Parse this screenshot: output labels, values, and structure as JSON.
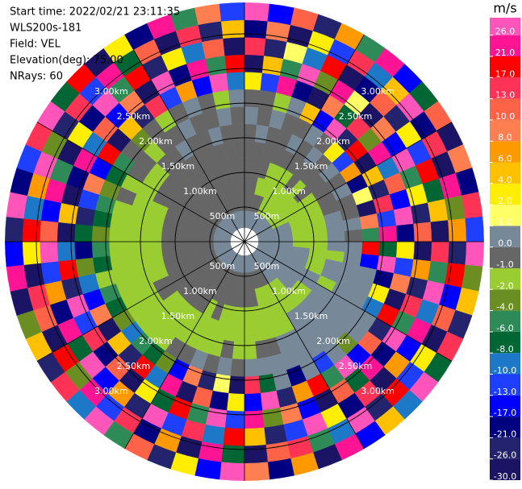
{
  "chart_data": {
    "type": "ppi",
    "info": [
      "Start time: 2022/02/21 23:11:35",
      "WLS200s-181",
      "Field: VEL",
      "Elevation(deg): 75.00",
      "NRays: 60"
    ],
    "colorbar_title": "m/s",
    "ranges": [
      0.2,
      0.45,
      0.7,
      0.95,
      1.2,
      1.45,
      1.7,
      1.95,
      2.2,
      2.45,
      2.7,
      2.95,
      3.2,
      3.45
    ],
    "range_rings": [
      {
        "value": 0.5,
        "label": "500m"
      },
      {
        "value": 1.0,
        "label": "1.00km"
      },
      {
        "value": 1.5,
        "label": "1.50km"
      },
      {
        "value": 2.0,
        "label": "2.00km"
      },
      {
        "value": 2.5,
        "label": "2.50km"
      },
      {
        "value": 3.0,
        "label": "3.00km"
      }
    ],
    "levels": [
      {
        "value": -30,
        "label": "-30.0"
      },
      {
        "value": -26,
        "label": "-26.0"
      },
      {
        "value": -21,
        "label": "-21.0"
      },
      {
        "value": -17,
        "label": "-17.0"
      },
      {
        "value": -13,
        "label": "-13.0"
      },
      {
        "value": -10,
        "label": "-10.0"
      },
      {
        "value": -8,
        "label": "-8.0"
      },
      {
        "value": -6,
        "label": "-6.0"
      },
      {
        "value": -4,
        "label": "-4.0"
      },
      {
        "value": -2,
        "label": "-2.0"
      },
      {
        "value": -1,
        "label": "-1.0"
      },
      {
        "value": 0,
        "label": "0.0"
      },
      {
        "value": 1,
        "label": "1.0"
      },
      {
        "value": 2,
        "label": "2.0"
      },
      {
        "value": 4,
        "label": "4.0"
      },
      {
        "value": 6,
        "label": "6.0"
      },
      {
        "value": 8,
        "label": "8.0"
      },
      {
        "value": 10,
        "label": "10.0"
      },
      {
        "value": 13,
        "label": "13.0"
      },
      {
        "value": 17,
        "label": "17.0"
      },
      {
        "value": 21,
        "label": "21.0"
      },
      {
        "value": 26,
        "label": "26.0"
      }
    ],
    "colors": [
      "#1b1464",
      "#24246e",
      "#000080",
      "#0000ff",
      "#1f3fff",
      "#1e78c8",
      "#006633",
      "#2e8b57",
      "#6b8e23",
      "#9acd32",
      "#666666",
      "#778899",
      "#ffff66",
      "#ffee00",
      "#ffc000",
      "#ff9900",
      "#ff7f50",
      "#ff6347",
      "#ff3355",
      "#ff0000",
      "#ff1493",
      "#ff55bb"
    ],
    "values": [
      [
        0.5,
        -0.5,
        -0.5,
        -0.5,
        -0.5,
        -0.5,
        0.5,
        -0.5,
        3,
        -28,
        15,
        -19,
        28
      ],
      [
        0.5,
        -0.5,
        -0.5,
        -0.5,
        -0.5,
        0.5,
        -0.5,
        -0.5,
        -11,
        5,
        -23,
        9,
        -15
      ],
      [
        0.5,
        -0.5,
        -1.5,
        -0.5,
        -0.5,
        -0.5,
        0.5,
        -1.5,
        23,
        -5,
        1.5,
        -28,
        11
      ],
      [
        0.5,
        -0.5,
        -1.5,
        -1.5,
        -0.5,
        -0.5,
        -0.5,
        0.5,
        -19,
        28,
        -9,
        3,
        -23
      ],
      [
        0.5,
        -1.5,
        -1.5,
        -1.5,
        -0.5,
        0.5,
        -0.5,
        5,
        -28,
        -3,
        19,
        -11,
        7
      ],
      [
        0.5,
        -1.5,
        -1.5,
        -1.5,
        -0.5,
        -0.5,
        0.5,
        -15,
        9,
        23,
        -28,
        15,
        -5
      ],
      [
        0.5,
        -1.5,
        -1.5,
        -0.5,
        -0.5,
        0.5,
        -0.5,
        28,
        -7,
        1.5,
        -19,
        -9,
        23
      ],
      [
        0.5,
        -1.5,
        -1.5,
        -1.5,
        -0.5,
        -0.5,
        3,
        -23,
        15,
        -28,
        11,
        5,
        -15
      ],
      [
        0.5,
        -1.5,
        -1.5,
        -0.5,
        -0.5,
        0.5,
        -11,
        19,
        -3,
        9,
        -23,
        28,
        -7
      ],
      [
        0.5,
        -1.5,
        -1.5,
        -1.5,
        -0.5,
        -0.5,
        7,
        -28,
        23,
        -15,
        3,
        -19,
        11
      ],
      [
        0.5,
        -1.5,
        -1.5,
        -1.5,
        -0.5,
        0.5,
        -19,
        5,
        -9,
        28,
        -11,
        15,
        -28
      ],
      [
        0.5,
        0.5,
        -1.5,
        -1.5,
        -0.5,
        -0.5,
        1.5,
        -23,
        11,
        -5,
        19,
        -28,
        9
      ],
      [
        0.5,
        0.5,
        -1.5,
        -1.5,
        0.5,
        -0.5,
        -28,
        15,
        -15,
        3,
        -7,
        23,
        -19
      ],
      [
        0.5,
        0.5,
        -1.5,
        -1.5,
        0.5,
        0.5,
        9,
        -11,
        28,
        -23,
        5,
        -3,
        15
      ],
      [
        0.5,
        0.5,
        -1.5,
        -1.5,
        0.5,
        -0.5,
        -5,
        23,
        -19,
        11,
        -28,
        7,
        -11
      ],
      [
        0.5,
        0.5,
        -1.5,
        -1.5,
        0.5,
        0.5,
        19,
        -7,
        3,
        -28,
        15,
        -23,
        28
      ],
      [
        0.5,
        0.5,
        0.5,
        -1.5,
        -1.5,
        0.5,
        -15,
        28,
        -11,
        7,
        -5,
        19,
        -3
      ],
      [
        0.5,
        0.5,
        0.5,
        -1.5,
        0.5,
        0.5,
        0.5,
        -19,
        9,
        -23,
        28,
        -15,
        5
      ],
      [
        0.5,
        0.5,
        0.5,
        -1.5,
        0.5,
        0.5,
        0.5,
        3,
        -28,
        15,
        -9,
        11,
        -23
      ],
      [
        0.5,
        0.5,
        0.5,
        0.5,
        -1.5,
        0.5,
        0.5,
        -9,
        19,
        -5,
        23,
        -28,
        15
      ],
      [
        0.5,
        0.5,
        0.5,
        0.5,
        0.5,
        0.5,
        0.5,
        0.5,
        -23,
        28,
        -15,
        3,
        -7
      ],
      [
        0.5,
        0.5,
        0.5,
        -1.5,
        0.5,
        0.5,
        0.5,
        0.5,
        11,
        -19,
        7,
        -11,
        28
      ],
      [
        0.5,
        0.5,
        0.5,
        -1.5,
        0.5,
        0.5,
        0.5,
        -3,
        -15,
        23,
        -28,
        19,
        -9
      ],
      [
        0.5,
        0.5,
        -1.5,
        -1.5,
        0.5,
        0.5,
        0.5,
        0.5,
        28,
        -7,
        15,
        -23,
        5
      ],
      [
        0.5,
        0.5,
        -1.5,
        -1.5,
        0.5,
        0.5,
        0.5,
        -11,
        -5,
        11,
        -19,
        28,
        -15
      ],
      [
        0.5,
        -0.5,
        -1.5,
        -1.5,
        -1.5,
        0.5,
        0.5,
        0.5,
        19,
        -28,
        3,
        -9,
        23
      ],
      [
        0.5,
        -0.5,
        -1.5,
        -1.5,
        -1.5,
        0.5,
        0.5,
        -19,
        7,
        -15,
        28,
        -5,
        -28
      ],
      [
        0.5,
        -0.5,
        -1.5,
        -1.5,
        -1.5,
        -0.5,
        0.5,
        0.5,
        -23,
        9,
        -11,
        15,
        7
      ],
      [
        0.5,
        -0.5,
        -0.5,
        -1.5,
        -1.5,
        -0.5,
        0.5,
        -7,
        28,
        -3,
        -23,
        11,
        -19
      ],
      [
        0.5,
        -0.5,
        -0.5,
        -1.5,
        -1.5,
        -1.5,
        0.5,
        15,
        -15,
        23,
        5,
        -28,
        9
      ],
      [
        0.5,
        -0.5,
        -0.5,
        -1.5,
        -1.5,
        -1.5,
        -0.5,
        -28,
        3,
        -11,
        19,
        -7,
        28
      ],
      [
        0.5,
        -0.5,
        -0.5,
        -1.5,
        -1.5,
        -0.5,
        0.5,
        1.5,
        -19,
        28,
        -9,
        23,
        -15
      ],
      [
        0.5,
        -0.5,
        -0.5,
        -1.5,
        -1.5,
        -1.5,
        -0.5,
        -23,
        11,
        -5,
        15,
        -28,
        3
      ],
      [
        0.5,
        -0.5,
        -0.5,
        -0.5,
        -1.5,
        -1.5,
        0.5,
        9,
        -28,
        19,
        -11,
        7,
        -23
      ],
      [
        0.5,
        -0.5,
        -0.5,
        -1.5,
        -1.5,
        -1.5,
        -0.5,
        -15,
        23,
        -7,
        28,
        -19,
        11
      ],
      [
        0.5,
        -0.5,
        -0.5,
        -0.5,
        -1.5,
        -1.5,
        -0.5,
        -3,
        -9,
        3,
        -23,
        15,
        -5
      ],
      [
        0.5,
        -0.5,
        -0.5,
        -0.5,
        -1.5,
        -1.5,
        -1.5,
        -7,
        19,
        -28,
        7,
        -11,
        28
      ],
      [
        0.5,
        -0.5,
        -0.5,
        -0.5,
        -1.5,
        -1.5,
        -1.5,
        -5,
        -23,
        11,
        -15,
        23,
        -9
      ],
      [
        0.5,
        -0.5,
        -0.5,
        -0.5,
        -1.5,
        -1.5,
        -1.5,
        -9,
        5,
        -19,
        28,
        -3,
        15
      ],
      [
        0.5,
        -0.5,
        -0.5,
        -0.5,
        -0.5,
        -1.5,
        -1.5,
        -3,
        -28,
        15,
        -7,
        19,
        -23
      ],
      [
        0.5,
        -0.5,
        -0.5,
        -0.5,
        -0.5,
        -1.5,
        -1.5,
        -7,
        9,
        -11,
        23,
        -28,
        5
      ],
      [
        0.5,
        -0.5,
        -0.5,
        -0.5,
        -1.5,
        -1.5,
        -1.5,
        -5,
        -15,
        28,
        -19,
        11,
        -3
      ],
      [
        0.5,
        -0.5,
        -0.5,
        -0.5,
        -1.5,
        -1.5,
        -1.5,
        -1.5,
        -9,
        -23,
        7,
        15,
        -28
      ],
      [
        0.5,
        -0.5,
        -0.5,
        -0.5,
        -1.5,
        -1.5,
        -1.5,
        -7,
        -3,
        19,
        -11,
        -28,
        23
      ],
      [
        0.5,
        -0.5,
        -0.5,
        -0.5,
        -1.5,
        -1.5,
        -1.5,
        -5,
        -19,
        -9,
        28,
        3,
        -15
      ],
      [
        0.5,
        -0.5,
        -0.5,
        -0.5,
        -1.5,
        -1.5,
        -1.5,
        -3,
        -7,
        -28,
        11,
        19,
        -23
      ],
      [
        0.5,
        -0.5,
        -0.5,
        -0.5,
        -1.5,
        -1.5,
        -1.5,
        -7,
        -23,
        5,
        -15,
        -9,
        28
      ],
      [
        0.5,
        -0.5,
        -0.5,
        -0.5,
        -1.5,
        -1.5,
        -1.5,
        -5,
        -11,
        -28,
        23,
        7,
        -19
      ],
      [
        0.5,
        -0.5,
        -0.5,
        -0.5,
        -1.5,
        -1.5,
        -0.5,
        -3,
        9,
        -19,
        -5,
        28,
        -11
      ],
      [
        0.5,
        -0.5,
        -0.5,
        -0.5,
        -0.5,
        -1.5,
        -1.5,
        -7,
        -15,
        23,
        -28,
        -3,
        15
      ],
      [
        0.5,
        -0.5,
        -0.5,
        -0.5,
        -0.5,
        -1.5,
        -0.5,
        -5,
        19,
        -9,
        3,
        -23,
        28
      ],
      [
        0.5,
        -0.5,
        -0.5,
        -0.5,
        -0.5,
        -1.5,
        -0.5,
        -0.5,
        -28,
        11,
        -19,
        15,
        -7
      ],
      [
        0.5,
        -0.5,
        -0.5,
        -0.5,
        -0.5,
        -0.5,
        -1.5,
        -3,
        5,
        -15,
        28,
        -11,
        19
      ],
      [
        0.5,
        -0.5,
        -0.5,
        -0.5,
        -0.5,
        -0.5,
        -0.5,
        -0.5,
        -23,
        9,
        -5,
        23,
        -28
      ],
      [
        0.5,
        -0.5,
        -0.5,
        -0.5,
        -0.5,
        0.5,
        -0.5,
        -1.5,
        15,
        -28,
        19,
        -7,
        3
      ],
      [
        0.5,
        -0.5,
        -0.5,
        -0.5,
        -0.5,
        -0.5,
        0.5,
        -0.5,
        -11,
        28,
        -23,
        11,
        -19
      ],
      [
        0.5,
        -0.5,
        -0.5,
        -0.5,
        -0.5,
        -0.5,
        -0.5,
        0.5,
        7,
        -19,
        3,
        -28,
        23
      ],
      [
        0.5,
        -0.5,
        -0.5,
        -0.5,
        -0.5,
        0.5,
        -0.5,
        -0.5,
        -15,
        23,
        -9,
        15,
        -5
      ],
      [
        0.5,
        -0.5,
        -0.5,
        -0.5,
        -0.5,
        -0.5,
        0.5,
        -1.5,
        28,
        -5,
        11,
        -23,
        9
      ],
      [
        0.5,
        -0.5,
        -0.5,
        -0.5,
        -0.5,
        -0.5,
        -0.5,
        0.5,
        -9,
        19,
        -28,
        5,
        -11
      ]
    ]
  }
}
